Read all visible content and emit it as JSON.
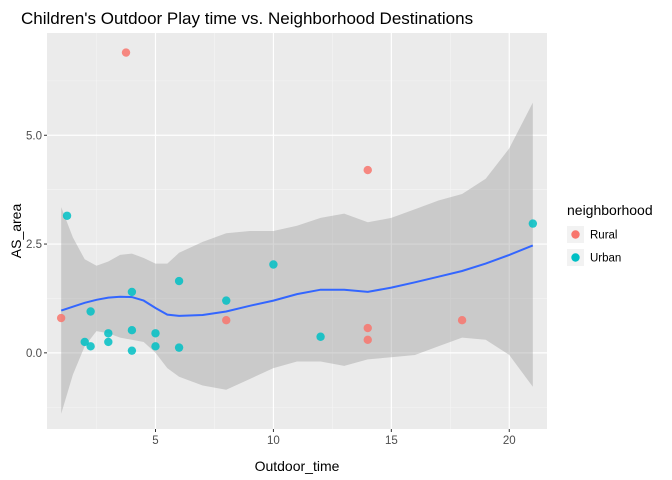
{
  "chart_data": {
    "type": "scatter",
    "title": "Children's Outdoor Play time vs. Neighborhood Destinations",
    "xlabel": "Outdoor_time",
    "ylabel": "AS_area",
    "xlim": [
      0.4,
      21.6
    ],
    "ylim": [
      -1.75,
      7.35
    ],
    "x_ticks": [
      5,
      10,
      15,
      20
    ],
    "x_tick_labels": [
      "5",
      "10",
      "15",
      "20"
    ],
    "y_ticks": [
      0,
      2.5,
      5
    ],
    "y_tick_labels": [
      "0.0",
      "2.5",
      "5.0"
    ],
    "grid": true,
    "background": "#ebebeb",
    "legend": {
      "title": "neighborhood",
      "position": "right",
      "entries": [
        {
          "label": "Rural",
          "color": "#F8766D"
        },
        {
          "label": "Urban",
          "color": "#00BFC4"
        }
      ]
    },
    "series": [
      {
        "name": "Rural",
        "color": "#F8766D",
        "points": [
          {
            "x": 1.0,
            "y": 0.8
          },
          {
            "x": 3.75,
            "y": 6.9
          },
          {
            "x": 8.0,
            "y": 0.75
          },
          {
            "x": 14.0,
            "y": 4.2
          },
          {
            "x": 14.0,
            "y": 0.57
          },
          {
            "x": 14.0,
            "y": 0.3
          },
          {
            "x": 18.0,
            "y": 0.75
          }
        ]
      },
      {
        "name": "Urban",
        "color": "#00BFC4",
        "points": [
          {
            "x": 1.25,
            "y": 3.15
          },
          {
            "x": 2.0,
            "y": 0.25
          },
          {
            "x": 2.25,
            "y": 0.15
          },
          {
            "x": 2.25,
            "y": 0.95
          },
          {
            "x": 3.0,
            "y": 0.45
          },
          {
            "x": 3.0,
            "y": 0.25
          },
          {
            "x": 4.0,
            "y": 1.4
          },
          {
            "x": 4.0,
            "y": 0.52
          },
          {
            "x": 4.0,
            "y": 0.05
          },
          {
            "x": 5.0,
            "y": 0.45
          },
          {
            "x": 5.0,
            "y": 0.15
          },
          {
            "x": 6.0,
            "y": 1.65
          },
          {
            "x": 6.0,
            "y": 0.12
          },
          {
            "x": 8.0,
            "y": 1.2
          },
          {
            "x": 10.0,
            "y": 2.03
          },
          {
            "x": 12.0,
            "y": 0.37
          },
          {
            "x": 21.0,
            "y": 2.97
          }
        ]
      }
    ],
    "smooth": {
      "color": "#3366FF",
      "band_color": "#999999",
      "x": [
        1.0,
        1.5,
        2.0,
        2.5,
        3.0,
        3.5,
        4.0,
        4.5,
        5.0,
        5.5,
        6.0,
        7.0,
        8.0,
        9.0,
        10.0,
        11.0,
        12.0,
        13.0,
        14.0,
        15.0,
        16.0,
        17.0,
        18.0,
        19.0,
        20.0,
        21.0
      ],
      "fit": [
        0.97,
        1.06,
        1.15,
        1.22,
        1.27,
        1.29,
        1.28,
        1.2,
        1.03,
        0.88,
        0.85,
        0.87,
        0.95,
        1.08,
        1.2,
        1.35,
        1.45,
        1.45,
        1.4,
        1.5,
        1.62,
        1.75,
        1.88,
        2.05,
        2.25,
        2.47
      ],
      "lower": [
        -1.4,
        -0.5,
        0.15,
        0.5,
        0.45,
        0.35,
        0.3,
        0.25,
        0.0,
        -0.35,
        -0.55,
        -0.75,
        -0.85,
        -0.6,
        -0.35,
        -0.2,
        -0.2,
        -0.3,
        -0.15,
        -0.1,
        -0.05,
        0.15,
        0.35,
        0.3,
        -0.05,
        -0.78
      ],
      "upper": [
        3.35,
        2.65,
        2.15,
        2.0,
        2.1,
        2.25,
        2.28,
        2.18,
        2.05,
        2.05,
        2.3,
        2.55,
        2.75,
        2.8,
        2.8,
        2.92,
        3.1,
        3.2,
        3.0,
        3.1,
        3.3,
        3.5,
        3.65,
        4.0,
        4.7,
        5.75
      ]
    }
  }
}
